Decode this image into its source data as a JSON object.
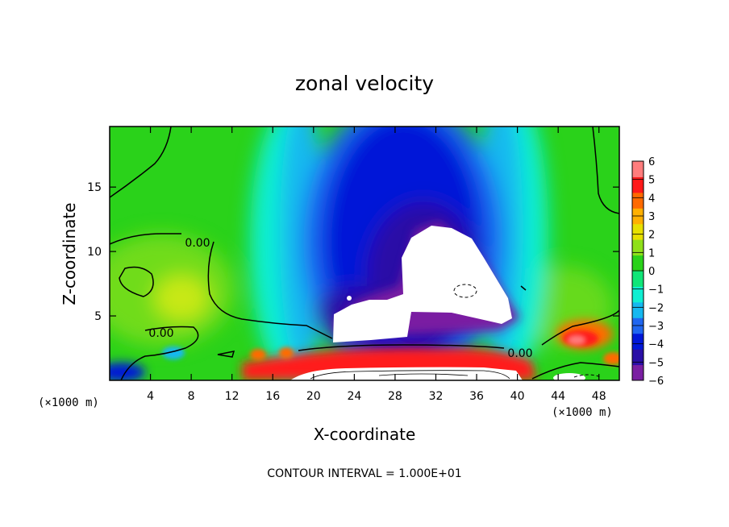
{
  "chart_data": {
    "type": "heatmap",
    "title": "zonal velocity",
    "xlabel": "X-coordinate",
    "ylabel": "Z-coordinate",
    "x_unit_label": "(×1000 m)",
    "y_unit_label": "(×1000 m)",
    "x_ticks": [
      4,
      8,
      12,
      16,
      20,
      24,
      28,
      32,
      36,
      40,
      44,
      48
    ],
    "y_ticks": [
      5,
      10,
      15
    ],
    "xlim": [
      0,
      50
    ],
    "ylim": [
      0,
      19.7
    ],
    "colorbar": {
      "ticks": [
        6,
        5,
        4,
        3,
        2,
        1,
        0,
        -1,
        -2,
        -3,
        -4,
        -5,
        -6
      ],
      "range": [
        -6,
        6
      ],
      "colors": [
        "#7a1fa2",
        "#2a0fa6",
        "#0018d8",
        "#1f66f0",
        "#15b8f0",
        "#10efd2",
        "#10e678",
        "#2ad21a",
        "#8fe01a",
        "#e8e000",
        "#ffb000",
        "#ff6a00",
        "#ff1a1a",
        "#ff7d7d"
      ]
    },
    "contour_labels": [
      "0.00",
      "0.00",
      "0.00"
    ],
    "contour_interval_text": "CONTOUR INTERVAL = 1.000E+01",
    "field_summary": {
      "background_value": 0.5,
      "negative_core": {
        "x_center": 30,
        "z_center": 9,
        "min": -6
      },
      "positive_jet": {
        "x_range": [
          13,
          42
        ],
        "z": 1,
        "max": 6
      },
      "right_positive_max": {
        "x": 46,
        "z": 3,
        "value": 5
      },
      "left_positive_blob": {
        "x": 6,
        "z": 7,
        "value": 1.6
      }
    }
  }
}
